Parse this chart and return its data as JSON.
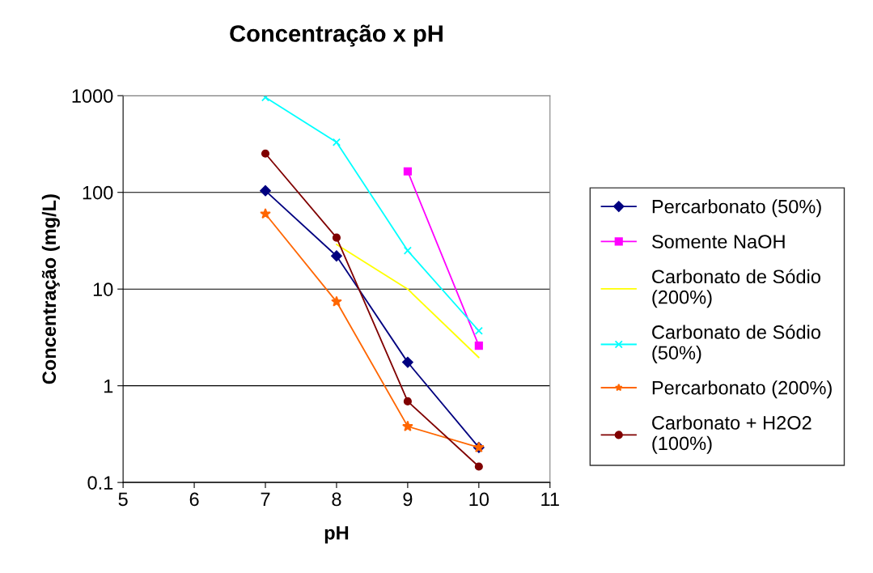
{
  "chart_data": {
    "type": "line",
    "title": "Concentração x pH",
    "xlabel": "pH",
    "ylabel": "Concentração (mg/L)",
    "log": "y",
    "xlim": [
      5,
      11
    ],
    "xticks": [
      5,
      6,
      7,
      8,
      9,
      10,
      11
    ],
    "ylim": [
      0.1,
      1000
    ],
    "yticks": [
      0.1,
      1,
      10,
      100,
      1000
    ],
    "grid": "y",
    "legend": "right",
    "x": [
      7,
      8,
      9,
      10
    ],
    "series": [
      {
        "name": "Percarbonato (50%)",
        "color": "#000080",
        "marker": "diamond",
        "values": [
          104,
          22,
          1.75,
          0.23
        ]
      },
      {
        "name": "Somente NaOH",
        "color": "#ff00ff",
        "marker": "square",
        "values": [
          null,
          null,
          165,
          2.6
        ]
      },
      {
        "name": "Carbonato de Sódio (200%)",
        "color": "#ffff00",
        "marker": "none",
        "values": [
          null,
          29,
          10,
          1.96
        ]
      },
      {
        "name": "Carbonato de Sódio (50%)",
        "color": "#00ffff",
        "marker": "cross",
        "values": [
          960,
          330,
          25,
          3.7
        ]
      },
      {
        "name": "Percarbonato (200%)",
        "color": "#ff6600",
        "marker": "star",
        "values": [
          60,
          7.4,
          0.38,
          0.23
        ]
      },
      {
        "name": "Carbonato + H2O2 (100%)",
        "color": "#800000",
        "marker": "circle",
        "values": [
          252,
          34,
          0.69,
          0.146
        ]
      }
    ]
  }
}
